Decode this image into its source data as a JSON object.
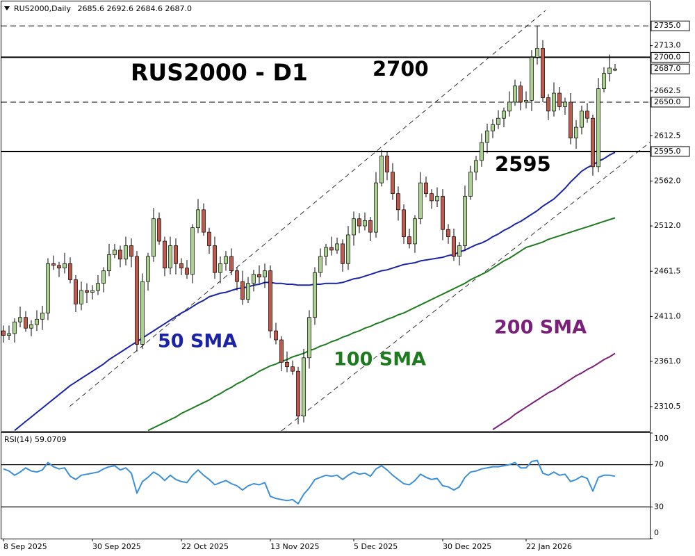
{
  "chart_data": [
    {
      "type": "candlestick",
      "title": "RUS2000,Daily",
      "last_bar_labels": {
        "open": "2685.6",
        "high": "2692.6",
        "low": "2684.6",
        "close": "2687.0"
      },
      "categories": [
        "8 Sep 2025",
        null,
        null,
        null,
        null,
        null,
        null,
        null,
        null,
        null,
        null,
        null,
        null,
        null,
        null,
        null,
        "30 Sep 2025",
        null,
        null,
        null,
        null,
        null,
        null,
        null,
        null,
        null,
        null,
        null,
        null,
        null,
        null,
        null,
        "22 Oct 2025",
        null,
        null,
        null,
        null,
        null,
        null,
        null,
        null,
        null,
        null,
        null,
        null,
        null,
        null,
        null,
        "13 Nov 2025",
        null,
        null,
        null,
        null,
        null,
        null,
        null,
        null,
        null,
        null,
        null,
        null,
        null,
        null,
        "5 Dec 2025",
        null,
        null,
        null,
        null,
        null,
        null,
        null,
        null,
        null,
        null,
        null,
        null,
        null,
        null,
        null,
        "30 Dec 2025",
        null,
        null,
        null,
        null,
        null,
        null,
        null,
        null,
        null,
        null,
        null,
        null,
        null,
        null,
        "22 Jan 2026",
        null,
        null,
        null,
        null,
        null,
        null,
        null,
        null,
        null,
        null,
        null,
        null,
        null,
        null,
        null,
        null
      ],
      "open": [
        2395,
        2390,
        2392,
        2405,
        2410,
        2398,
        2402,
        2408,
        2415,
        2470,
        2468,
        2465,
        2470,
        2452,
        2425,
        2440,
        2438,
        2440,
        2448,
        2462,
        2480,
        2485,
        2475,
        2490,
        2478,
        2380,
        2450,
        2478,
        2520,
        2495,
        2465,
        2490,
        2470,
        2465,
        2458,
        2510,
        2530,
        2505,
        2490,
        2460,
        2470,
        2478,
        2462,
        2450,
        2430,
        2448,
        2458,
        2455,
        2462,
        2395,
        2385,
        2360,
        2355,
        2350,
        2300,
        2365,
        2410,
        2460,
        2478,
        2488,
        2485,
        2492,
        2470,
        2502,
        2520,
        2512,
        2518,
        2505,
        2560,
        2590,
        2572,
        2548,
        2530,
        2500,
        2492,
        2520,
        2560,
        2548,
        2540,
        2545,
        2508,
        2500,
        2478,
        2490,
        2545,
        2572,
        2585,
        2605,
        2618,
        2625,
        2632,
        2640,
        2650,
        2668,
        2650,
        2652,
        2700,
        2710,
        2655,
        2640,
        2660,
        2645,
        2650,
        2610,
        2622,
        2640,
        2632,
        2578,
        2665,
        2682,
        2685.6
      ],
      "high": [
        2401,
        2401,
        2409,
        2422,
        2417,
        2407,
        2418,
        2423,
        2476,
        2479,
        2472,
        2482,
        2477,
        2457,
        2450,
        2448,
        2446,
        2457,
        2466,
        2492,
        2492,
        2490,
        2500,
        2498,
        2484,
        2459,
        2482,
        2532,
        2527,
        2500,
        2500,
        2498,
        2476,
        2474,
        2514,
        2542,
        2537,
        2510,
        2500,
        2478,
        2484,
        2487,
        2466,
        2462,
        2455,
        2463,
        2468,
        2470,
        2468,
        2404,
        2389,
        2372,
        2362,
        2355,
        2375,
        2418,
        2466,
        2487,
        2492,
        2500,
        2499,
        2497,
        2512,
        2528,
        2526,
        2527,
        2522,
        2572,
        2597,
        2595,
        2582,
        2556,
        2536,
        2509,
        2524,
        2572,
        2567,
        2553,
        2555,
        2553,
        2514,
        2509,
        2494,
        2557,
        2579,
        2590,
        2615,
        2626,
        2631,
        2641,
        2644,
        2662,
        2675,
        2673,
        2662,
        2708,
        2735,
        2719,
        2659,
        2672,
        2667,
        2655,
        2660,
        2630,
        2646,
        2649,
        2636,
        2677,
        2689,
        2703,
        2692.6
      ],
      "low": [
        2382,
        2385,
        2382,
        2399,
        2394,
        2389,
        2395,
        2396,
        2407,
        2463,
        2455,
        2459,
        2448,
        2416,
        2418,
        2426,
        2430,
        2435,
        2438,
        2456,
        2476,
        2466,
        2468,
        2466,
        2372,
        2375,
        2440,
        2472,
        2491,
        2456,
        2458,
        2458,
        2457,
        2453,
        2448,
        2504,
        2501,
        2481,
        2453,
        2448,
        2462,
        2457,
        2440,
        2424,
        2426,
        2439,
        2448,
        2443,
        2387,
        2380,
        2350,
        2349,
        2346,
        2291,
        2293,
        2353,
        2402,
        2455,
        2468,
        2479,
        2481,
        2461,
        2463,
        2490,
        2504,
        2507,
        2495,
        2499,
        2556,
        2563,
        2541,
        2518,
        2492,
        2487,
        2482,
        2514,
        2544,
        2531,
        2533,
        2496,
        2492,
        2473,
        2468,
        2484,
        2541,
        2563,
        2578,
        2593,
        2610,
        2620,
        2622,
        2634,
        2646,
        2641,
        2643,
        2640,
        2692,
        2650,
        2630,
        2634,
        2641,
        2636,
        2603,
        2598,
        2614,
        2627,
        2568,
        2572,
        2661,
        2673,
        2684.6
      ],
      "close": [
        2390,
        2392,
        2405,
        2410,
        2398,
        2402,
        2408,
        2415,
        2470,
        2468,
        2465,
        2470,
        2452,
        2425,
        2440,
        2438,
        2440,
        2448,
        2462,
        2480,
        2485,
        2475,
        2490,
        2478,
        2380,
        2450,
        2478,
        2520,
        2495,
        2465,
        2490,
        2470,
        2465,
        2458,
        2510,
        2530,
        2505,
        2490,
        2460,
        2470,
        2478,
        2462,
        2450,
        2430,
        2448,
        2458,
        2455,
        2462,
        2395,
        2385,
        2360,
        2355,
        2350,
        2300,
        2365,
        2410,
        2460,
        2478,
        2488,
        2485,
        2492,
        2470,
        2502,
        2520,
        2512,
        2518,
        2505,
        2560,
        2590,
        2572,
        2548,
        2530,
        2500,
        2492,
        2520,
        2560,
        2548,
        2540,
        2545,
        2508,
        2500,
        2478,
        2490,
        2545,
        2572,
        2585,
        2605,
        2618,
        2625,
        2632,
        2640,
        2650,
        2668,
        2650,
        2652,
        2700,
        2710,
        2655,
        2640,
        2660,
        2645,
        2650,
        2610,
        2622,
        2640,
        2632,
        2578,
        2665,
        2682,
        2688,
        2687
      ],
      "up_color": "#a9d18e",
      "down_color": "#c0584a",
      "series": [
        {
          "name": "50 SMA",
          "color": "#1a23a8",
          "values": [
            null,
            null,
            2284,
            2289,
            2294,
            2299,
            2304,
            2309,
            2314,
            2319,
            2324,
            2329,
            2334,
            2338,
            2342,
            2346,
            2350,
            2354,
            2358,
            2363,
            2367,
            2371,
            2375,
            2379,
            2383,
            2387,
            2391,
            2395,
            2399,
            2403,
            2407,
            2411,
            2415,
            2418,
            2422,
            2426,
            2429,
            2433,
            2435,
            2437,
            2438,
            2440,
            2442,
            2443,
            2444,
            2446,
            2447,
            2449,
            2449,
            2448,
            2448,
            2447,
            2447,
            2446,
            2446,
            2446,
            2447,
            2447,
            2448,
            2448,
            2448,
            2449,
            2451,
            2453,
            2454,
            2456,
            2458,
            2460,
            2462,
            2463,
            2465,
            2467,
            2469,
            2470,
            2471,
            2473,
            2474,
            2475,
            2476,
            2477,
            2479,
            2480,
            2483,
            2485,
            2488,
            2491,
            2493,
            2496,
            2500,
            2503,
            2507,
            2510,
            2514,
            2517,
            2521,
            2525,
            2529,
            2534,
            2538,
            2542,
            2548,
            2554,
            2561,
            2567,
            2573,
            2577,
            2580,
            2584,
            2587,
            2591,
            2594
          ]
        },
        {
          "name": "100 SMA",
          "color": "#1e7a1e",
          "values": [
            null,
            null,
            null,
            null,
            null,
            null,
            null,
            null,
            null,
            null,
            null,
            null,
            null,
            null,
            null,
            null,
            null,
            null,
            null,
            null,
            null,
            null,
            null,
            null,
            null,
            null,
            2284,
            2287,
            2290,
            2293,
            2296,
            2299,
            2303,
            2306,
            2309,
            2312,
            2315,
            2318,
            2322,
            2325,
            2329,
            2332,
            2336,
            2339,
            2343,
            2346,
            2350,
            2353,
            2356,
            2358,
            2361,
            2363,
            2366,
            2368,
            2370,
            2373,
            2375,
            2378,
            2380,
            2383,
            2385,
            2388,
            2390,
            2393,
            2395,
            2398,
            2400,
            2403,
            2405,
            2408,
            2410,
            2413,
            2415,
            2418,
            2421,
            2424,
            2427,
            2430,
            2433,
            2436,
            2439,
            2442,
            2445,
            2448,
            2452,
            2455,
            2458,
            2461,
            2465,
            2469,
            2473,
            2476,
            2480,
            2484,
            2488,
            2490,
            2492,
            2494,
            2497,
            2499,
            2501,
            2503,
            2505,
            2507,
            2509,
            2511,
            2513,
            2515,
            2517,
            2519,
            2521
          ]
        },
        {
          "name": "200 SMA",
          "color": "#7a1f7a",
          "values": [
            null,
            null,
            null,
            null,
            null,
            null,
            null,
            null,
            null,
            null,
            null,
            null,
            null,
            null,
            null,
            null,
            null,
            null,
            null,
            null,
            null,
            null,
            null,
            null,
            null,
            null,
            null,
            null,
            null,
            null,
            null,
            null,
            null,
            null,
            null,
            null,
            null,
            null,
            null,
            null,
            null,
            null,
            null,
            null,
            null,
            null,
            null,
            null,
            null,
            null,
            null,
            null,
            null,
            null,
            null,
            null,
            null,
            null,
            null,
            null,
            null,
            null,
            null,
            null,
            null,
            null,
            null,
            null,
            null,
            null,
            null,
            null,
            null,
            null,
            null,
            null,
            null,
            null,
            null,
            null,
            null,
            null,
            null,
            null,
            null,
            null,
            null,
            null,
            2285,
            2289,
            2293,
            2297,
            2302,
            2306,
            2310,
            2314,
            2318,
            2322,
            2326,
            2329,
            2333,
            2337,
            2341,
            2345,
            2348,
            2352,
            2355,
            2359,
            2363,
            2366,
            2370
          ]
        }
      ],
      "ylim": [
        2283.5,
        2762.3
      ],
      "yticks": [
        {
          "value": 2713,
          "label": "2713.0"
        },
        2662.5,
        2612.5,
        {
          "value": 2562,
          "label": "2562.0"
        },
        {
          "value": 2512,
          "label": "2512.0"
        },
        2461.5,
        {
          "value": 2411,
          "label": "2411.0"
        },
        {
          "value": 2361,
          "label": "2361.0"
        },
        2310.5
      ],
      "hlines": [
        {
          "value": 2735,
          "label": "2735.0",
          "style": "dashed"
        },
        {
          "value": 2700,
          "label": "2700.0",
          "style": "solid"
        },
        {
          "value": 2650,
          "label": "2650.0",
          "style": "dashed"
        },
        {
          "value": 2595,
          "label": "2595.0",
          "style": "solid"
        }
      ],
      "price_marker": {
        "value": 2687,
        "label": "2687.0"
      },
      "annotations": [
        "RUS2000 - D1",
        "2700",
        "2595"
      ]
    },
    {
      "type": "line",
      "title": "RSI(14)",
      "color": "#3a8fd8",
      "values": [
        66,
        64,
        60,
        63,
        67,
        64,
        63,
        65,
        72,
        68,
        66,
        67,
        59,
        56,
        60,
        61,
        62,
        63,
        66,
        68,
        69,
        65,
        67,
        62,
        43,
        54,
        58,
        63,
        60,
        55,
        60,
        56,
        54,
        53,
        60,
        65,
        60,
        56,
        51,
        53,
        55,
        52,
        50,
        46,
        50,
        52,
        51,
        53,
        40,
        38,
        37,
        36,
        37,
        33,
        42,
        48,
        56,
        58,
        60,
        59,
        60,
        56,
        60,
        63,
        61,
        62,
        59,
        66,
        69,
        65,
        60,
        56,
        52,
        51,
        55,
        61,
        58,
        56,
        57,
        50,
        49,
        46,
        49,
        58,
        63,
        64,
        66,
        67,
        68,
        68,
        69,
        70,
        72,
        67,
        67,
        73,
        74,
        62,
        60,
        63,
        60,
        61,
        54,
        56,
        59,
        57,
        45,
        58,
        60,
        60,
        59.0709
      ],
      "ylim": [
        0,
        100
      ],
      "yticks": [
        100,
        70,
        30,
        0
      ],
      "levels": [
        70,
        30
      ]
    }
  ]
}
